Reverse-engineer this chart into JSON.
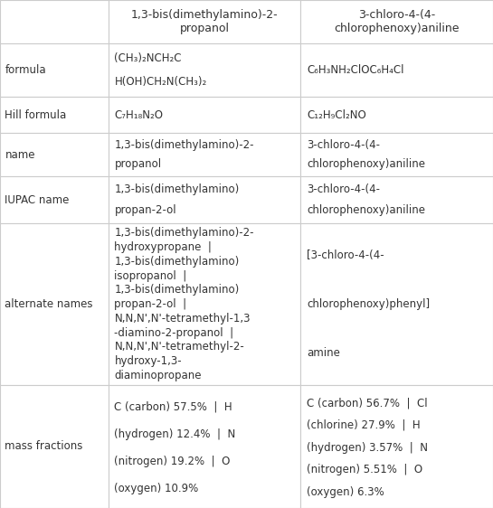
{
  "col_headers": [
    "1,3-bis(dimethylamino)-2-\npropanol",
    "3-chloro-4-(4-\nchlorophenoxy)aniline"
  ],
  "row_labels": [
    "formula",
    "Hill formula",
    "name",
    "IUPAC name",
    "alternate names",
    "mass fractions"
  ],
  "cells": {
    "formula": [
      "(CH₃)₂NCH₂C\nH(OH)CH₂N(CH₃)₂",
      "C₆H₃NH₂ClOC₆H₄Cl"
    ],
    "Hill formula": [
      "C₇H₁₈N₂O",
      "C₁₂H₉Cl₂NO"
    ],
    "name": [
      "1,3-bis(dimethylamino)-2-\npropanol",
      "3-chloro-4-(4-\nchlorophenoxy)aniline"
    ],
    "IUPAC name": [
      "1,3-bis(dimethylamino)\npropan-2-ol",
      "3-chloro-4-(4-\nchlorophenoxy)aniline"
    ],
    "alternate names": [
      "1,3-bis(dimethylamino)-2-\nhydroxypropane  |\n1,3-bis(dimethylamino)\nisopropanol  |\n1,3-bis(dimethylamino)\npropan-2-ol  |\nN,N,N',N'-tetramethyl-1,3\n-diamino-2-propanol  |\nN,N,N',N'-tetramethyl-2-\nhydroxy-1,3-\ndiaminopropane",
      "[3-chloro-4-(4-\nchlorophenoxy)phenyl]\namine"
    ],
    "mass fractions": [
      "C (carbon) 57.5%  |  H\n(hydrogen) 12.4%  |  N\n(nitrogen) 19.2%  |  O\n(oxygen) 10.9%",
      "C (carbon) 56.7%  |  Cl\n(chlorine) 27.9%  |  H\n(hydrogen) 3.57%  |  N\n(nitrogen) 5.51%  |  O\n(oxygen) 6.3%"
    ]
  },
  "bg_color": "#ffffff",
  "line_color": "#cccccc",
  "text_color": "#333333",
  "header_bg": "#f5f5f5",
  "font_size": 8.5,
  "header_font_size": 9
}
